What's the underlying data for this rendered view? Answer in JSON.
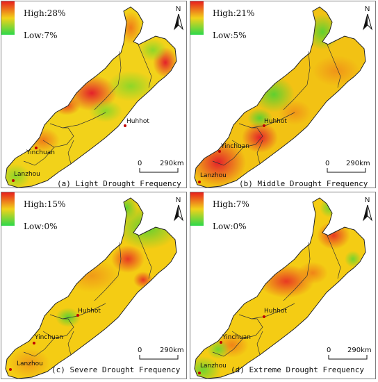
{
  "panels": [
    {
      "caption": "(a) Light Drought Frequency",
      "legend_high": "High:28%",
      "legend_low": "Low:7%",
      "hotspots": [
        "#e4212a",
        "#eb4a1e",
        "#f07a18",
        "#8fd628"
      ]
    },
    {
      "caption": "(b) Middle Drought Frequency",
      "legend_high": "High:21%",
      "legend_low": "Low:5%",
      "hotspots": [
        "#e4212a",
        "#f09418",
        "#f2c214",
        "#5fd030"
      ]
    },
    {
      "caption": "(c) Severe Drought Frequency",
      "legend_high": "High:15%",
      "legend_low": "Low:0%",
      "hotspots": [
        "#e83a22",
        "#f09a18",
        "#f4cc14",
        "#5fd030"
      ]
    },
    {
      "caption": "(d) Extreme Drought Frequency",
      "legend_high": "High:7%",
      "legend_low": "Low:0%",
      "hotspots": [
        "#e83a22",
        "#f08418",
        "#f4cc14",
        "#74d42e"
      ]
    }
  ],
  "cities": {
    "huhhot": "Huhhot",
    "yinchuan": "Yinchuan",
    "lanzhou": "Lanzhou"
  },
  "scale": {
    "zero": "0",
    "distance": "290km"
  },
  "north_label": "N",
  "colors": {
    "high": "#e8201e",
    "mid": "#f2d21a",
    "low": "#2ed84a",
    "city_dot": "#c00000"
  }
}
